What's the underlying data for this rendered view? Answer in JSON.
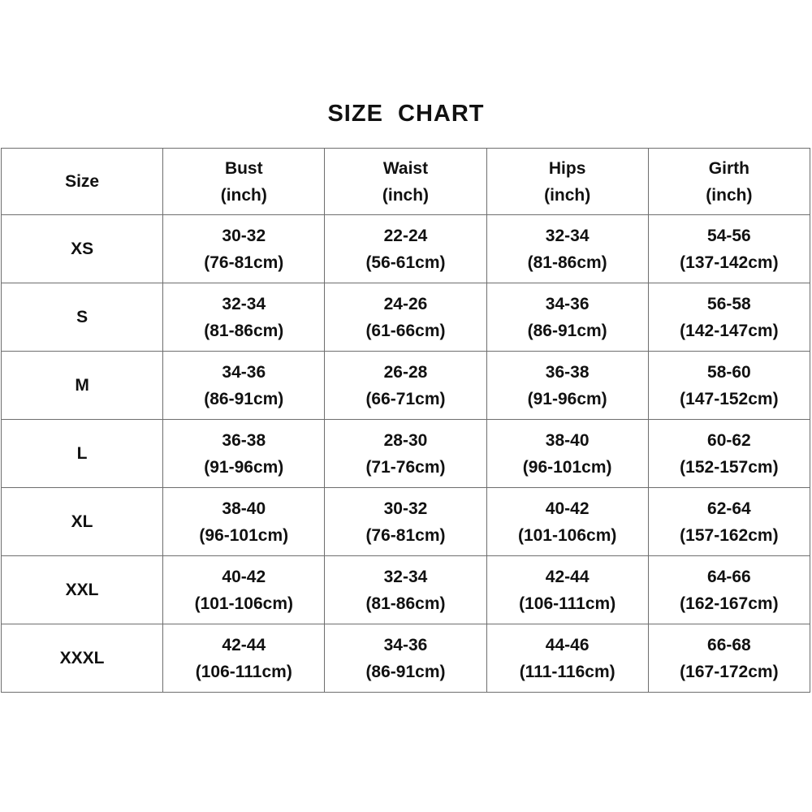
{
  "chart_data": {
    "type": "table",
    "title": "SIZE  CHART",
    "columns": [
      {
        "key": "size",
        "label": "Size",
        "unit": ""
      },
      {
        "key": "bust",
        "label": "Bust",
        "unit": "(inch)"
      },
      {
        "key": "waist",
        "label": "Waist",
        "unit": "(inch)"
      },
      {
        "key": "hips",
        "label": "Hips",
        "unit": "(inch)"
      },
      {
        "key": "girth",
        "label": "Girth",
        "unit": "(inch)"
      }
    ],
    "rows": [
      {
        "size": "XS",
        "bust": {
          "inch": "30-32",
          "cm": "(76-81cm)"
        },
        "waist": {
          "inch": "22-24",
          "cm": "(56-61cm)"
        },
        "hips": {
          "inch": "32-34",
          "cm": "(81-86cm)"
        },
        "girth": {
          "inch": "54-56",
          "cm": "(137-142cm)"
        }
      },
      {
        "size": "S",
        "bust": {
          "inch": "32-34",
          "cm": "(81-86cm)"
        },
        "waist": {
          "inch": "24-26",
          "cm": "(61-66cm)"
        },
        "hips": {
          "inch": "34-36",
          "cm": "(86-91cm)"
        },
        "girth": {
          "inch": "56-58",
          "cm": "(142-147cm)"
        }
      },
      {
        "size": "M",
        "bust": {
          "inch": "34-36",
          "cm": "(86-91cm)"
        },
        "waist": {
          "inch": "26-28",
          "cm": "(66-71cm)"
        },
        "hips": {
          "inch": "36-38",
          "cm": "(91-96cm)"
        },
        "girth": {
          "inch": "58-60",
          "cm": "(147-152cm)"
        }
      },
      {
        "size": "L",
        "bust": {
          "inch": "36-38",
          "cm": "(91-96cm)"
        },
        "waist": {
          "inch": "28-30",
          "cm": "(71-76cm)"
        },
        "hips": {
          "inch": "38-40",
          "cm": "(96-101cm)"
        },
        "girth": {
          "inch": "60-62",
          "cm": "(152-157cm)"
        }
      },
      {
        "size": "XL",
        "bust": {
          "inch": "38-40",
          "cm": "(96-101cm)"
        },
        "waist": {
          "inch": "30-32",
          "cm": "(76-81cm)"
        },
        "hips": {
          "inch": "40-42",
          "cm": "(101-106cm)"
        },
        "girth": {
          "inch": "62-64",
          "cm": "(157-162cm)"
        }
      },
      {
        "size": "XXL",
        "bust": {
          "inch": "40-42",
          "cm": "(101-106cm)"
        },
        "waist": {
          "inch": "32-34",
          "cm": "(81-86cm)"
        },
        "hips": {
          "inch": "42-44",
          "cm": "(106-111cm)"
        },
        "girth": {
          "inch": "64-66",
          "cm": "(162-167cm)"
        }
      },
      {
        "size": "XXXL",
        "bust": {
          "inch": "42-44",
          "cm": "(106-111cm)"
        },
        "waist": {
          "inch": "34-36",
          "cm": "(86-91cm)"
        },
        "hips": {
          "inch": "44-46",
          "cm": "(111-116cm)"
        },
        "girth": {
          "inch": "66-68",
          "cm": "(167-172cm)"
        }
      }
    ],
    "layout": {
      "grid": true,
      "header_row": true,
      "columns_equal_width": true
    }
  },
  "colors": {
    "border": "#6e6e6e",
    "text": "#111111",
    "background": "#ffffff"
  }
}
